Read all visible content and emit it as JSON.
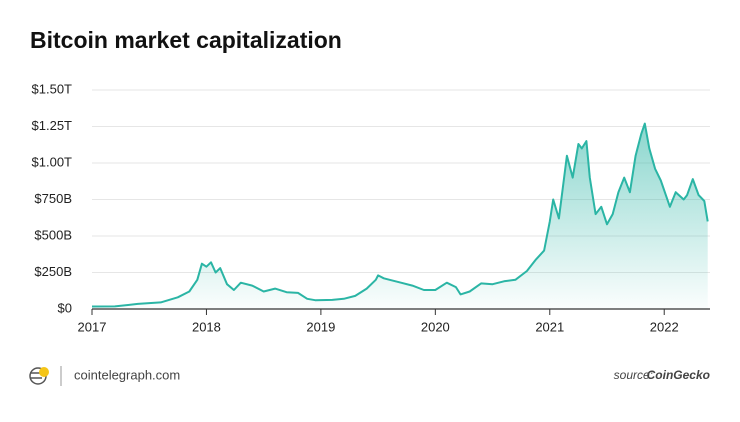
{
  "chart_data": {
    "type": "area",
    "title": "Bitcoin market capitalization",
    "x": [
      2017.0,
      2017.2,
      2017.4,
      2017.6,
      2017.75,
      2017.85,
      2017.92,
      2017.96,
      2018.0,
      2018.04,
      2018.08,
      2018.12,
      2018.18,
      2018.24,
      2018.3,
      2018.4,
      2018.5,
      2018.6,
      2018.7,
      2018.8,
      2018.88,
      2018.95,
      2019.1,
      2019.2,
      2019.3,
      2019.4,
      2019.48,
      2019.5,
      2019.55,
      2019.6,
      2019.7,
      2019.8,
      2019.9,
      2020.0,
      2020.1,
      2020.18,
      2020.22,
      2020.3,
      2020.4,
      2020.5,
      2020.6,
      2020.7,
      2020.8,
      2020.88,
      2020.95,
      2021.0,
      2021.03,
      2021.08,
      2021.15,
      2021.2,
      2021.25,
      2021.28,
      2021.32,
      2021.35,
      2021.4,
      2021.45,
      2021.5,
      2021.55,
      2021.6,
      2021.65,
      2021.7,
      2021.75,
      2021.8,
      2021.83,
      2021.87,
      2021.92,
      2021.97,
      2022.05,
      2022.1,
      2022.17,
      2022.2,
      2022.25,
      2022.3,
      2022.35,
      2022.38
    ],
    "series": [
      {
        "name": "Market capitalization",
        "color": "#2bb5a5",
        "values": [
          17,
          18,
          35,
          45,
          80,
          120,
          200,
          310,
          290,
          320,
          250,
          280,
          170,
          130,
          180,
          160,
          120,
          140,
          115,
          110,
          70,
          60,
          62,
          70,
          90,
          140,
          200,
          230,
          210,
          200,
          180,
          160,
          130,
          130,
          180,
          150,
          100,
          120,
          175,
          170,
          190,
          200,
          260,
          340,
          400,
          600,
          750,
          620,
          1050,
          900,
          1130,
          1100,
          1150,
          900,
          650,
          700,
          580,
          650,
          800,
          900,
          800,
          1050,
          1200,
          1270,
          1100,
          960,
          880,
          700,
          800,
          750,
          780,
          890,
          780,
          740,
          600
        ]
      }
    ],
    "xlim": [
      2017,
      2022.4
    ],
    "xticks": [
      2017,
      2018,
      2019,
      2020,
      2021,
      2022
    ],
    "ylim": [
      0,
      1500
    ],
    "yticks": [
      {
        "value": 0,
        "label": "$0"
      },
      {
        "value": 250,
        "label": "$250B"
      },
      {
        "value": 500,
        "label": "$500B"
      },
      {
        "value": 750,
        "label": "$750B"
      },
      {
        "value": 1000,
        "label": "$1.00T"
      },
      {
        "value": 1250,
        "label": "$1.25T"
      },
      {
        "value": 1500,
        "label": "$1.50T"
      }
    ],
    "grid": true
  },
  "footer": {
    "site": "cointelegraph.com",
    "source_label": "source:",
    "source": "CoinGecko"
  }
}
